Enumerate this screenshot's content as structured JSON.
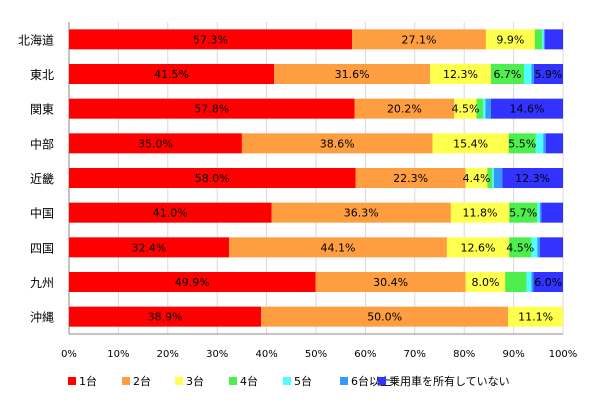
{
  "chart_data": {
    "type": "bar",
    "orientation": "horizontal",
    "stacked": "percent",
    "categories": [
      "北海道",
      "東北",
      "関東",
      "中部",
      "近畿",
      "中国",
      "四国",
      "九州",
      "沖縄"
    ],
    "series": [
      {
        "name": "1台",
        "color": "#ff0000",
        "values": [
          57.3,
          41.5,
          57.8,
          35.0,
          58.0,
          41.0,
          32.4,
          49.9,
          38.9
        ]
      },
      {
        "name": "2台",
        "color": "#ff9e40",
        "values": [
          27.1,
          31.6,
          20.2,
          38.6,
          22.3,
          36.3,
          44.1,
          30.4,
          50.0
        ]
      },
      {
        "name": "3台",
        "color": "#ffff4d",
        "values": [
          9.9,
          12.3,
          4.5,
          15.4,
          4.4,
          11.8,
          12.6,
          8.0,
          11.1
        ]
      },
      {
        "name": "4台",
        "color": "#4dee4d",
        "values": [
          1.5,
          6.7,
          1.3,
          5.5,
          1.0,
          5.7,
          4.5,
          4.3,
          0
        ]
      },
      {
        "name": "5台",
        "color": "#4dffff",
        "values": [
          0.3,
          1.5,
          0.5,
          1.5,
          0.3,
          0.5,
          1.2,
          1.0,
          0
        ]
      },
      {
        "name": "6台以上",
        "color": "#3399ff",
        "values": [
          0.2,
          0.5,
          1.1,
          0.5,
          1.7,
          0.3,
          0.5,
          0.4,
          0
        ]
      },
      {
        "name": "乗用車を所有していない",
        "color": "#3333ff",
        "values": [
          3.7,
          5.9,
          14.6,
          3.5,
          12.3,
          4.4,
          4.7,
          6.0,
          0
        ]
      }
    ],
    "data_labels": [
      [
        "57.3%",
        "27.1%",
        "9.9%",
        "",
        "",
        "",
        ""
      ],
      [
        "41.5%",
        "31.6%",
        "12.3%",
        "6.7%",
        "",
        "",
        "5.9%"
      ],
      [
        "57.8%",
        "20.2%",
        "4.5%",
        "",
        "",
        "",
        "14.6%"
      ],
      [
        "35.0%",
        "38.6%",
        "15.4%",
        "5.5%",
        "",
        "",
        ""
      ],
      [
        "58.0%",
        "22.3%",
        "4.4%",
        "",
        "",
        "",
        "12.3%"
      ],
      [
        "41.0%",
        "36.3%",
        "11.8%",
        "5.7%",
        "",
        "",
        ""
      ],
      [
        "32.4%",
        "44.1%",
        "12.6%",
        "4.5%",
        "",
        "",
        ""
      ],
      [
        "49.9%",
        "30.4%",
        "8.0%",
        "",
        "",
        "",
        "6.0%"
      ],
      [
        "38.9%",
        "50.0%",
        "11.1%",
        "",
        "",
        "",
        ""
      ]
    ],
    "x_ticks": [
      "0%",
      "10%",
      "20%",
      "30%",
      "40%",
      "50%",
      "60%",
      "70%",
      "80%",
      "90%",
      "100%"
    ],
    "xlim": [
      0,
      100
    ],
    "grid": true,
    "legend_position": "bottom",
    "title": "",
    "xlabel": "",
    "ylabel": ""
  }
}
